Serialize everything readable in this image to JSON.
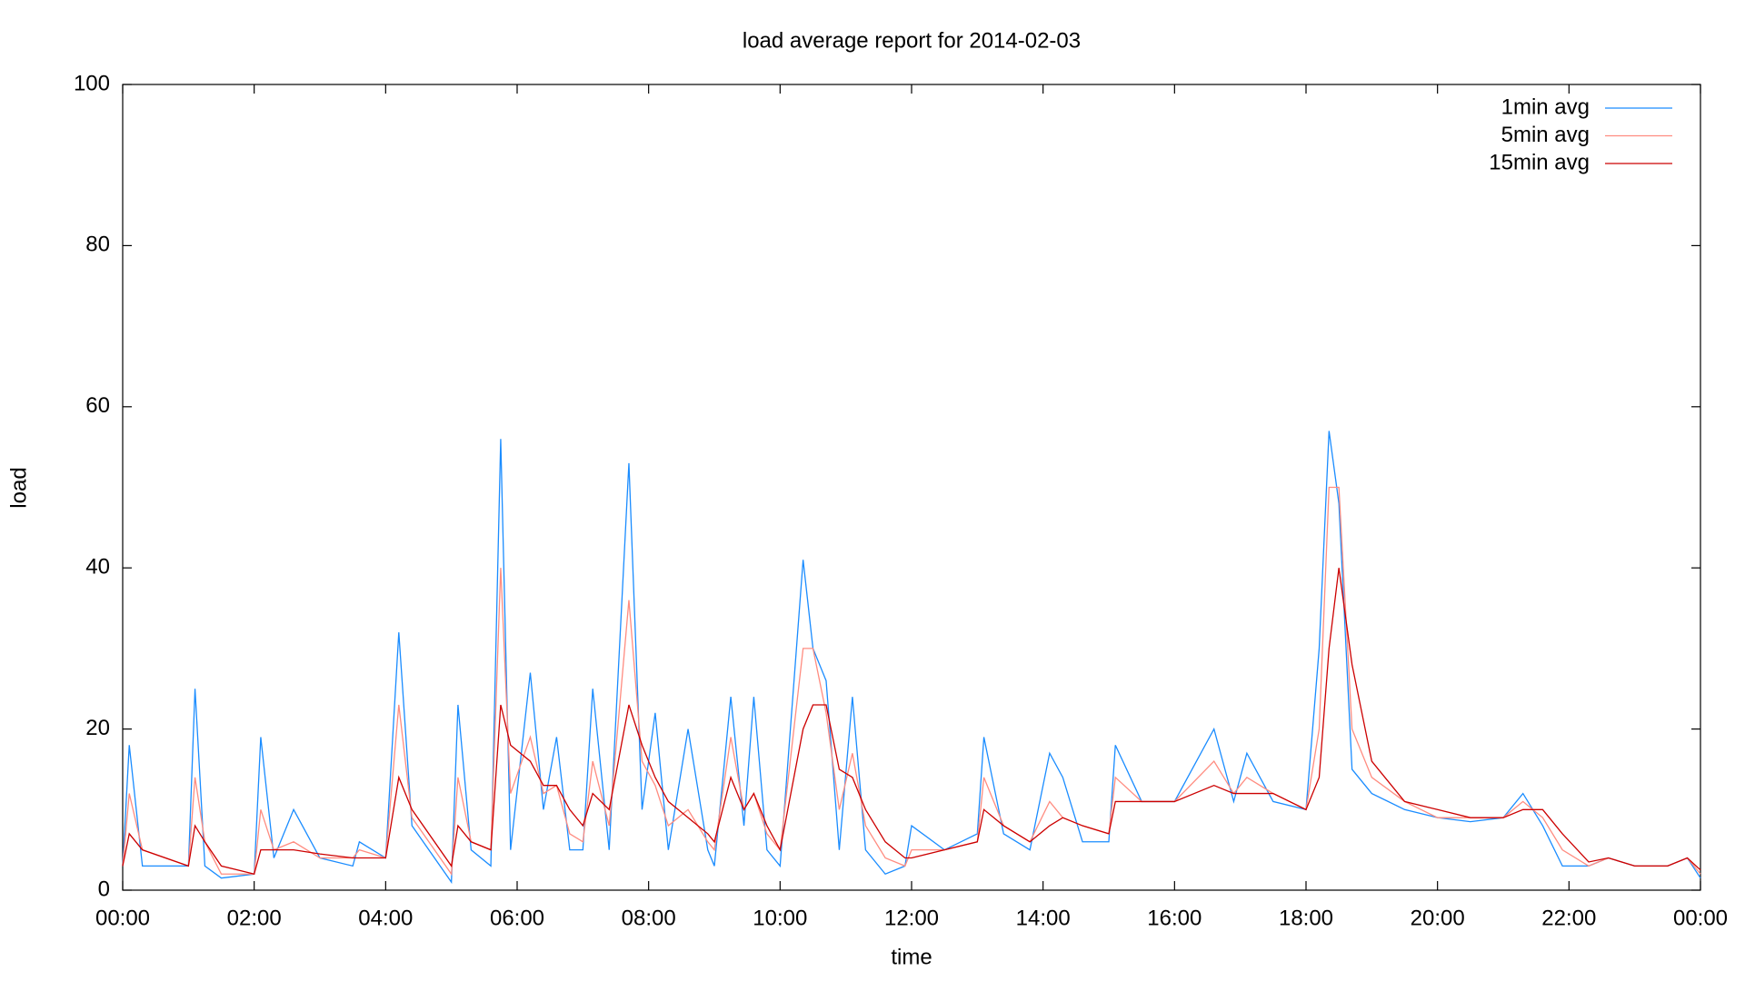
{
  "chart_data": {
    "type": "line",
    "title": "load average report for 2014-02-03",
    "x_label": "time",
    "y_label": "load",
    "x": [
      0,
      0.1,
      0.3,
      1.0,
      1.1,
      1.25,
      1.5,
      2.0,
      2.1,
      2.3,
      2.6,
      3.0,
      3.5,
      3.6,
      4.0,
      4.2,
      4.4,
      5.0,
      5.1,
      5.3,
      5.6,
      5.75,
      5.9,
      6.2,
      6.4,
      6.6,
      6.8,
      7.0,
      7.15,
      7.4,
      7.7,
      7.9,
      8.1,
      8.3,
      8.6,
      8.9,
      9.0,
      9.25,
      9.45,
      9.6,
      9.8,
      10.0,
      10.35,
      10.5,
      10.7,
      10.9,
      11.1,
      11.3,
      11.6,
      11.9,
      12.0,
      12.5,
      13.0,
      13.1,
      13.4,
      13.8,
      14.1,
      14.3,
      14.6,
      15.0,
      15.1,
      15.5,
      16.0,
      16.6,
      16.9,
      17.1,
      17.5,
      18.0,
      18.2,
      18.35,
      18.5,
      18.7,
      19.0,
      19.5,
      20.0,
      20.5,
      21.0,
      21.3,
      21.6,
      21.9,
      22.3,
      22.6,
      23.0,
      23.5,
      23.8,
      24.0
    ],
    "series": [
      {
        "name": "1min avg",
        "color": "#1a8cff",
        "values": [
          3,
          18,
          3,
          3,
          25,
          3,
          1.5,
          2,
          19,
          4,
          10,
          4,
          3,
          6,
          4,
          32,
          8,
          1,
          23,
          5,
          3,
          56,
          5,
          27,
          10,
          19,
          5,
          5,
          25,
          5,
          53,
          10,
          22,
          5,
          20,
          5,
          3,
          24,
          8,
          24,
          5,
          3,
          41,
          30,
          26,
          5,
          24,
          5,
          2,
          3,
          8,
          5,
          7,
          19,
          7,
          5,
          17,
          14,
          6,
          6,
          18,
          11,
          11,
          20,
          11,
          17,
          11,
          10,
          30,
          57,
          48,
          15,
          12,
          10,
          9,
          8.5,
          9,
          12,
          8,
          3,
          3,
          4,
          3,
          3,
          4,
          1.5
        ]
      },
      {
        "name": "5min avg",
        "color": "#ff8c80",
        "values": [
          3,
          12,
          5,
          3,
          14,
          6,
          2,
          2,
          10,
          5,
          6,
          4,
          4,
          5,
          4,
          23,
          9,
          2,
          14,
          6,
          5,
          40,
          12,
          19,
          12,
          13,
          7,
          6,
          16,
          8,
          36,
          16,
          13,
          8,
          10,
          6,
          5,
          19,
          10,
          12,
          7,
          5,
          30,
          30,
          22,
          10,
          17,
          8,
          4,
          3,
          5,
          5,
          6,
          14,
          8,
          6,
          11,
          9,
          8,
          7,
          14,
          11,
          11,
          16,
          12,
          14,
          12,
          10,
          20,
          50,
          50,
          20,
          14,
          11,
          9,
          9,
          9,
          11,
          9,
          5,
          3,
          4,
          3,
          3,
          4,
          2
        ]
      },
      {
        "name": "15min avg",
        "color": "#cc0000",
        "values": [
          3,
          7,
          5,
          3,
          8,
          6,
          3,
          2,
          5,
          5,
          5,
          4.5,
          4,
          4,
          4,
          14,
          10,
          3,
          8,
          6,
          5,
          23,
          18,
          16,
          13,
          13,
          10,
          8,
          12,
          10,
          23,
          18,
          14,
          11,
          9,
          7,
          6,
          14,
          10,
          12,
          8,
          5,
          20,
          23,
          23,
          15,
          14,
          10,
          6,
          4,
          4,
          5,
          6,
          10,
          8,
          6,
          8,
          9,
          8,
          7,
          11,
          11,
          11,
          13,
          12,
          12,
          12,
          10,
          14,
          30,
          40,
          28,
          16,
          11,
          10,
          9,
          9,
          10,
          10,
          7,
          3.5,
          4,
          3,
          3,
          4,
          2.5
        ]
      }
    ],
    "xlim": [
      0,
      24
    ],
    "xticks": [
      {
        "value": 0,
        "label": "00:00"
      },
      {
        "value": 2,
        "label": "02:00"
      },
      {
        "value": 4,
        "label": "04:00"
      },
      {
        "value": 6,
        "label": "06:00"
      },
      {
        "value": 8,
        "label": "08:00"
      },
      {
        "value": 10,
        "label": "10:00"
      },
      {
        "value": 12,
        "label": "12:00"
      },
      {
        "value": 14,
        "label": "14:00"
      },
      {
        "value": 16,
        "label": "16:00"
      },
      {
        "value": 18,
        "label": "18:00"
      },
      {
        "value": 20,
        "label": "20:00"
      },
      {
        "value": 22,
        "label": "22:00"
      },
      {
        "value": 24,
        "label": "00:00"
      }
    ],
    "ylim": [
      0,
      100
    ],
    "yticks": [
      0,
      20,
      40,
      60,
      80,
      100
    ],
    "grid": false,
    "legend": "top-right"
  }
}
